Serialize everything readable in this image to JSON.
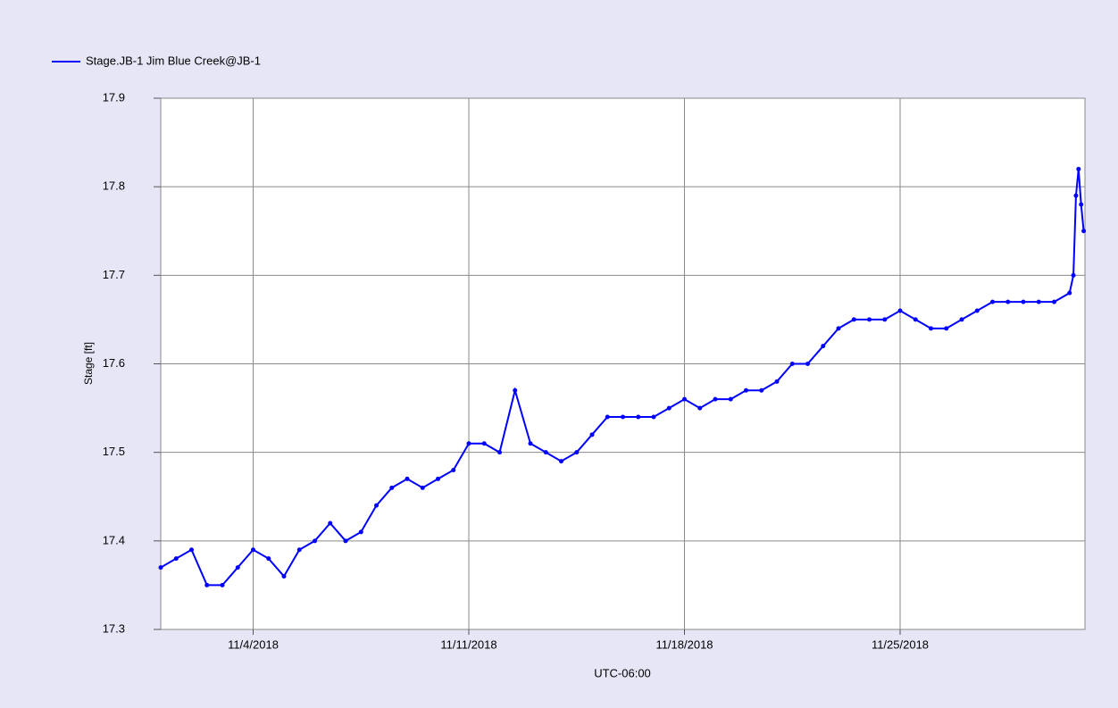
{
  "chart_data": {
    "type": "line",
    "y_label": "Stage [ft]",
    "x_label": "UTC-06:00",
    "xlim": [
      "2018-11-01T00:00",
      "2018-12-01T00:00"
    ],
    "xticks": [
      {
        "value": "2018-11-04T00:00",
        "label": "11/4/2018"
      },
      {
        "value": "2018-11-11T00:00",
        "label": "11/11/2018"
      },
      {
        "value": "2018-11-18T00:00",
        "label": "11/18/2018"
      },
      {
        "value": "2018-11-25T00:00",
        "label": "11/25/2018"
      }
    ],
    "ylim": [
      17.3,
      17.9
    ],
    "yticks": [
      17.3,
      17.4,
      17.5,
      17.6,
      17.7,
      17.8,
      17.9
    ],
    "grid": true,
    "legend": "top-left",
    "x": [
      "2018-11-01T00:00",
      "2018-11-01T12:00",
      "2018-11-02T00:00",
      "2018-11-02T12:00",
      "2018-11-03T00:00",
      "2018-11-03T12:00",
      "2018-11-04T00:00",
      "2018-11-04T12:00",
      "2018-11-05T00:00",
      "2018-11-05T12:00",
      "2018-11-06T00:00",
      "2018-11-06T12:00",
      "2018-11-07T00:00",
      "2018-11-07T12:00",
      "2018-11-08T00:00",
      "2018-11-08T12:00",
      "2018-11-09T00:00",
      "2018-11-09T12:00",
      "2018-11-10T00:00",
      "2018-11-10T12:00",
      "2018-11-11T00:00",
      "2018-11-11T12:00",
      "2018-11-12T00:00",
      "2018-11-12T12:00",
      "2018-11-13T00:00",
      "2018-11-13T12:00",
      "2018-11-14T00:00",
      "2018-11-14T12:00",
      "2018-11-15T00:00",
      "2018-11-15T12:00",
      "2018-11-16T00:00",
      "2018-11-16T12:00",
      "2018-11-17T00:00",
      "2018-11-17T12:00",
      "2018-11-18T00:00",
      "2018-11-18T12:00",
      "2018-11-19T00:00",
      "2018-11-19T12:00",
      "2018-11-20T00:00",
      "2018-11-20T12:00",
      "2018-11-21T00:00",
      "2018-11-21T12:00",
      "2018-11-22T00:00",
      "2018-11-22T12:00",
      "2018-11-23T00:00",
      "2018-11-23T12:00",
      "2018-11-24T00:00",
      "2018-11-24T12:00",
      "2018-11-25T00:00",
      "2018-11-25T12:00",
      "2018-11-26T00:00",
      "2018-11-26T12:00",
      "2018-11-27T00:00",
      "2018-11-27T12:00",
      "2018-11-28T00:00",
      "2018-11-28T12:00",
      "2018-11-29T00:00",
      "2018-11-29T12:00",
      "2018-11-30T00:00",
      "2018-11-30T12:00",
      "2018-11-30T15:00",
      "2018-11-30T17:00",
      "2018-11-30T19:00",
      "2018-11-30T21:00",
      "2018-11-30T23:00"
    ],
    "series": [
      {
        "name": "Stage.JB-1 Jim Blue Creek@JB-1",
        "color": "#0000ff",
        "values": [
          17.37,
          17.38,
          17.39,
          17.35,
          17.35,
          17.37,
          17.39,
          17.38,
          17.36,
          17.39,
          17.4,
          17.42,
          17.4,
          17.41,
          17.44,
          17.46,
          17.47,
          17.46,
          17.47,
          17.48,
          17.51,
          17.51,
          17.5,
          17.57,
          17.51,
          17.5,
          17.49,
          17.5,
          17.52,
          17.54,
          17.54,
          17.54,
          17.54,
          17.55,
          17.56,
          17.55,
          17.56,
          17.56,
          17.57,
          17.57,
          17.58,
          17.6,
          17.6,
          17.62,
          17.64,
          17.65,
          17.65,
          17.65,
          17.66,
          17.65,
          17.64,
          17.64,
          17.65,
          17.66,
          17.67,
          17.67,
          17.67,
          17.67,
          17.67,
          17.68,
          17.7,
          17.79,
          17.82,
          17.78,
          17.75
        ]
      }
    ]
  }
}
